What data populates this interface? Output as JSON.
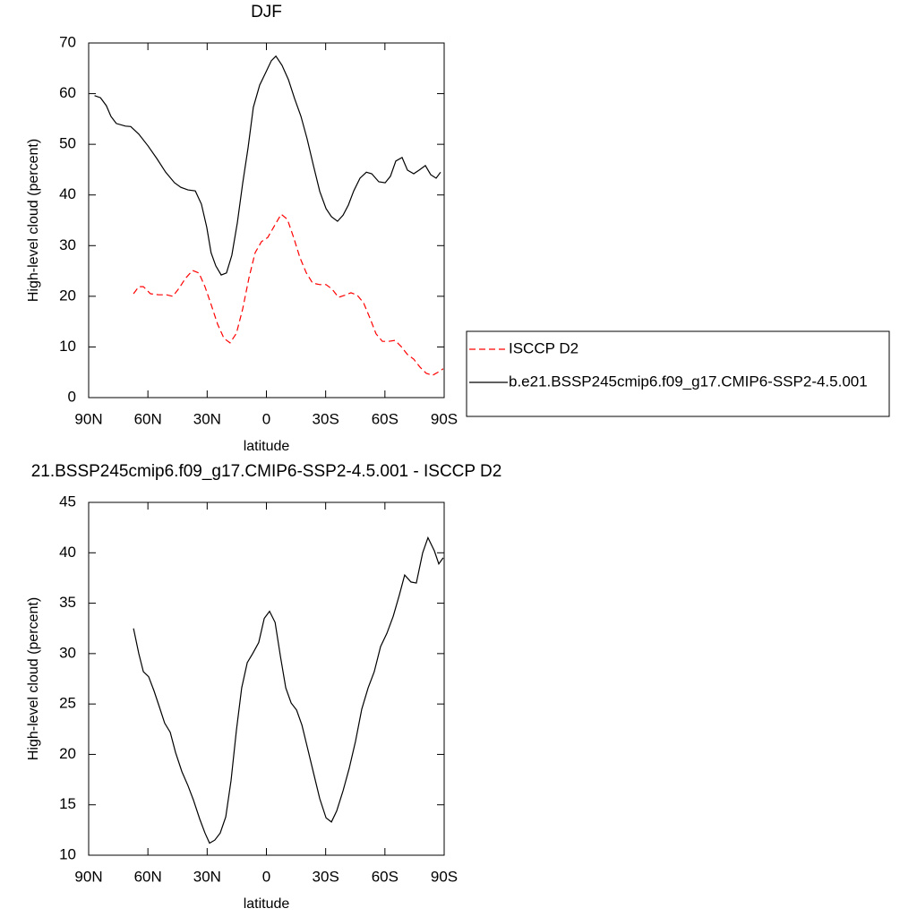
{
  "chart_data": [
    {
      "type": "line",
      "title": "DJF",
      "xlabel": "latitude",
      "ylabel": "High-level cloud (percent)",
      "xlim": [
        90,
        -90
      ],
      "xticks": [
        {
          "value": 90,
          "label": "90N"
        },
        {
          "value": 60,
          "label": "60N"
        },
        {
          "value": 30,
          "label": "30N"
        },
        0,
        {
          "value": -30,
          "label": "30S"
        },
        {
          "value": -60,
          "label": "60S"
        },
        {
          "value": -90,
          "label": "90S"
        }
      ],
      "ylim": [
        0,
        70
      ],
      "yticks": [
        0,
        10,
        20,
        30,
        40,
        50,
        60,
        70
      ],
      "legend": "right",
      "series": [
        {
          "name": "ISCCP D2",
          "color": "#ff0000",
          "dash": true,
          "x": [
            67.3,
            64.6,
            62.3,
            58.7,
            54.6,
            50.6,
            47.4,
            44.2,
            41.1,
            37.4,
            34.2,
            31.1,
            28,
            24.7,
            21.5,
            18.4,
            15.2,
            12,
            8.8,
            5.7,
            2.5,
            -0.7,
            -3.9,
            -7.5,
            -10.6,
            -13.8,
            -17,
            -20.2,
            -23.4,
            -27,
            -30.2,
            -33.3,
            -36.5,
            -39.7,
            -42.8,
            -46,
            -49.2,
            -52.4,
            -55.5,
            -58.7,
            -61.9,
            -65.1,
            -68.2,
            -71.4,
            -74.6,
            -77.8,
            -80.9,
            -84.1,
            -87.3,
            -89.5
          ],
          "values": [
            20.5,
            21.9,
            21.9,
            20.5,
            20.3,
            20.3,
            20,
            21.6,
            23.5,
            25.1,
            24.6,
            21.9,
            18.4,
            14.5,
            11.7,
            10.8,
            12.7,
            17.5,
            23.7,
            28.6,
            30.8,
            31.6,
            33.8,
            36.2,
            35.2,
            31.6,
            27.6,
            24.6,
            22.6,
            22.3,
            22.3,
            21.4,
            19.8,
            20.2,
            20.7,
            20.2,
            18.7,
            15.7,
            12.6,
            11.1,
            11.1,
            11.3,
            10.1,
            8.5,
            7.6,
            6,
            4.8,
            4.4,
            5.1,
            5.7
          ]
        },
        {
          "name": "b.e21.BSSP245cmip6.f09_g17.CMIP6-SSP2-4.5.001",
          "color": "#000000",
          "dash": false,
          "x": [
            87,
            84,
            81,
            78.7,
            76,
            71.4,
            68.7,
            64.6,
            60,
            55.5,
            51,
            46.5,
            43.3,
            39.7,
            36,
            32.9,
            30.2,
            28,
            25.6,
            22.9,
            20.2,
            17.5,
            14.7,
            12,
            9.3,
            6.6,
            3.4,
            0.2,
            -2.5,
            -4.8,
            -7.9,
            -11.1,
            -14.3,
            -17.5,
            -20.6,
            -23.8,
            -27,
            -30.2,
            -32.9,
            -36,
            -38.8,
            -41.5,
            -44.2,
            -47.4,
            -50.6,
            -53.3,
            -56.9,
            -60.1,
            -62.8,
            -65.5,
            -68.7,
            -71.4,
            -74.6,
            -77.3,
            -80.5,
            -83.2,
            -85.9,
            -88.2
          ],
          "values": [
            59.6,
            59.2,
            57.6,
            55.5,
            54.1,
            53.6,
            53.5,
            52,
            49.7,
            47.2,
            44.5,
            42.4,
            41.5,
            41,
            40.8,
            38.2,
            33.6,
            28.6,
            26,
            24.2,
            24.6,
            28.1,
            34.6,
            42.3,
            49.3,
            57.3,
            61.7,
            64.3,
            66.5,
            67.4,
            65.6,
            62.8,
            59,
            55.5,
            51.1,
            45.8,
            40.7,
            37.3,
            35.7,
            34.8,
            36,
            38,
            40.8,
            43.3,
            44.5,
            44.2,
            42.6,
            42.4,
            43.7,
            46.7,
            47.4,
            44.9,
            44.2,
            44.9,
            45.8,
            44,
            43.3,
            44.5
          ]
        }
      ]
    },
    {
      "type": "line",
      "title": "21.BSSP245cmip6.f09_g17.CMIP6-SSP2-4.5.001 - ISCCP D2",
      "xlabel": "latitude",
      "ylabel": "High-level cloud (percent)",
      "xlim": [
        90,
        -90
      ],
      "xticks": [
        {
          "value": 90,
          "label": "90N"
        },
        {
          "value": 60,
          "label": "60N"
        },
        {
          "value": 30,
          "label": "30N"
        },
        0,
        {
          "value": -30,
          "label": "30S"
        },
        {
          "value": -60,
          "label": "60S"
        },
        {
          "value": -90,
          "label": "90S"
        }
      ],
      "ylim": [
        10,
        45
      ],
      "yticks": [
        10,
        15,
        20,
        25,
        30,
        35,
        40,
        45
      ],
      "series": [
        {
          "color": "#000000",
          "dash": false,
          "x": [
            67.3,
            64.6,
            62.3,
            59.6,
            56.9,
            54.2,
            51.5,
            48.7,
            46,
            42.8,
            39.7,
            37,
            33.8,
            31.1,
            28.8,
            26.1,
            23.4,
            20.6,
            17.9,
            15.2,
            12.5,
            9.7,
            7,
            3.9,
            1.1,
            -1.6,
            -4.4,
            -7.1,
            -9.8,
            -12.5,
            -15.3,
            -18,
            -20.7,
            -23.8,
            -27,
            -30.2,
            -32.9,
            -35.6,
            -38.8,
            -41.9,
            -45.1,
            -48.3,
            -51.5,
            -54.6,
            -57.8,
            -61,
            -64.2,
            -67.3,
            -70,
            -73.2,
            -75.9,
            -79.1,
            -81.8,
            -85,
            -87.3,
            -89.5
          ],
          "values": [
            32.5,
            30,
            28.2,
            27.7,
            26.3,
            24.7,
            23.1,
            22.2,
            20.2,
            18.3,
            16.9,
            15.5,
            13.6,
            12.2,
            11.2,
            11.5,
            12.2,
            13.8,
            17.4,
            22.4,
            26.6,
            29.1,
            30,
            31.1,
            33.5,
            34.2,
            33.1,
            29.7,
            26.6,
            25.1,
            24.4,
            22.9,
            20.7,
            18.2,
            15.6,
            13.7,
            13.3,
            14.4,
            16.4,
            18.6,
            21.3,
            24.5,
            26.6,
            28.2,
            30.7,
            32,
            33.7,
            35.8,
            37.8,
            37.1,
            37,
            40,
            41.5,
            40.2,
            38.9,
            39.5
          ]
        }
      ]
    }
  ]
}
